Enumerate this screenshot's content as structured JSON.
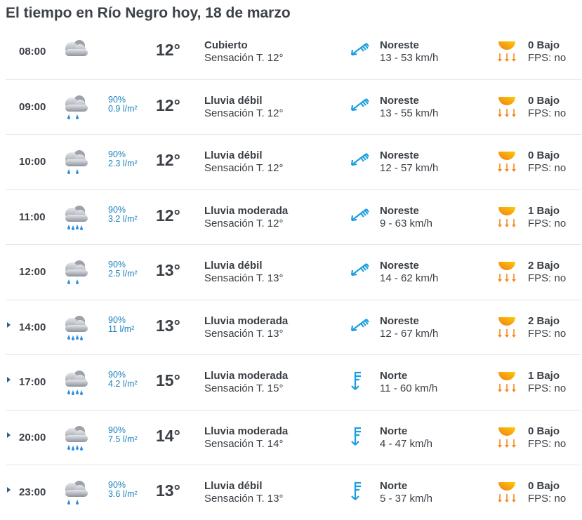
{
  "title": "El tiempo en Río Negro hoy, 18 de marzo",
  "colors": {
    "accent": "#1d83c0",
    "wind_icon": "#1a9ee0",
    "uv_icon": "#f58a1f"
  },
  "rows": [
    {
      "time": "08:00",
      "expandable": false,
      "icon": "overcast-cloud-icon",
      "rain": false,
      "prob": "",
      "amount": "",
      "temp": "12°",
      "desc": "Cubierto",
      "feels": "Sensación T. 12°",
      "wind_dir": "Noreste",
      "wind_icon": "wind-northeast-icon",
      "wind_speed": "13 - 53 km/h",
      "uv": "0 Bajo",
      "fps": "FPS: no"
    },
    {
      "time": "09:00",
      "expandable": false,
      "icon": "rain-cloud-icon",
      "rain": true,
      "prob": "90%",
      "amount": "0.9 l/m²",
      "temp": "12°",
      "desc": "Lluvia débil",
      "feels": "Sensación T. 12°",
      "wind_dir": "Noreste",
      "wind_icon": "wind-northeast-icon",
      "wind_speed": "13 - 55 km/h",
      "uv": "0 Bajo",
      "fps": "FPS: no"
    },
    {
      "time": "10:00",
      "expandable": false,
      "icon": "rain-cloud-icon",
      "rain": true,
      "prob": "90%",
      "amount": "2.3 l/m²",
      "temp": "12°",
      "desc": "Lluvia débil",
      "feels": "Sensación T. 12°",
      "wind_dir": "Noreste",
      "wind_icon": "wind-northeast-icon",
      "wind_speed": "12 - 57 km/h",
      "uv": "0 Bajo",
      "fps": "FPS: no"
    },
    {
      "time": "11:00",
      "expandable": false,
      "icon": "heavy-rain-cloud-icon",
      "rain": true,
      "prob": "90%",
      "amount": "3.2 l/m²",
      "temp": "12°",
      "desc": "Lluvia moderada",
      "feels": "Sensación T. 12°",
      "wind_dir": "Noreste",
      "wind_icon": "wind-northeast-icon",
      "wind_speed": "9 - 63 km/h",
      "uv": "1 Bajo",
      "fps": "FPS: no"
    },
    {
      "time": "12:00",
      "expandable": false,
      "icon": "rain-cloud-icon",
      "rain": true,
      "prob": "90%",
      "amount": "2.5 l/m²",
      "temp": "13°",
      "desc": "Lluvia débil",
      "feels": "Sensación T. 13°",
      "wind_dir": "Noreste",
      "wind_icon": "wind-northeast-icon",
      "wind_speed": "14 - 62 km/h",
      "uv": "2 Bajo",
      "fps": "FPS: no"
    },
    {
      "time": "14:00",
      "expandable": true,
      "icon": "heavy-rain-cloud-icon",
      "rain": true,
      "prob": "90%",
      "amount": "11 l/m²",
      "temp": "13°",
      "desc": "Lluvia moderada",
      "feels": "Sensación T. 13°",
      "wind_dir": "Noreste",
      "wind_icon": "wind-northeast-icon",
      "wind_speed": "12 - 67 km/h",
      "uv": "2 Bajo",
      "fps": "FPS: no"
    },
    {
      "time": "17:00",
      "expandable": true,
      "icon": "heavy-rain-cloud-icon",
      "rain": true,
      "prob": "90%",
      "amount": "4.2 l/m²",
      "temp": "15°",
      "desc": "Lluvia moderada",
      "feels": "Sensación T. 15°",
      "wind_dir": "Norte",
      "wind_icon": "wind-north-icon",
      "wind_speed": "11 - 60 km/h",
      "uv": "1 Bajo",
      "fps": "FPS: no"
    },
    {
      "time": "20:00",
      "expandable": true,
      "icon": "heavy-rain-cloud-icon",
      "rain": true,
      "prob": "90%",
      "amount": "7.5 l/m²",
      "temp": "14°",
      "desc": "Lluvia moderada",
      "feels": "Sensación T. 14°",
      "wind_dir": "Norte",
      "wind_icon": "wind-north-icon",
      "wind_speed": "4 - 47 km/h",
      "uv": "0 Bajo",
      "fps": "FPS: no"
    },
    {
      "time": "23:00",
      "expandable": true,
      "icon": "rain-cloud-icon",
      "rain": true,
      "prob": "90%",
      "amount": "3.6 l/m²",
      "temp": "13°",
      "desc": "Lluvia débil",
      "feels": "Sensación T. 13°",
      "wind_dir": "Norte",
      "wind_icon": "wind-north-icon",
      "wind_speed": "5 - 37 km/h",
      "uv": "0 Bajo",
      "fps": "FPS: no"
    }
  ]
}
